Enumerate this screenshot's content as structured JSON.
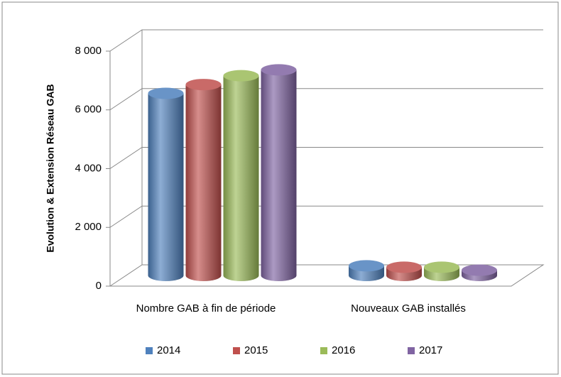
{
  "chart_data": {
    "type": "bar3d",
    "y_axis_label": "Evolution & Extension Réseau GAB",
    "categories": [
      "Nombre GAB à fin de période",
      "Nouveaux GAB installés"
    ],
    "series": [
      {
        "name": "2014",
        "color": "#4f81bd",
        "values": [
          6200,
          330
        ]
      },
      {
        "name": "2015",
        "color": "#c0504d",
        "values": [
          6500,
          280
        ]
      },
      {
        "name": "2016",
        "color": "#9bbb59",
        "values": [
          6800,
          280
        ]
      },
      {
        "name": "2017",
        "color": "#8064a2",
        "values": [
          7000,
          180
        ]
      }
    ],
    "ylim": [
      0,
      8000
    ],
    "yticks": [
      0,
      {
        "value": 2000,
        "label": "2 000"
      },
      {
        "value": 4000,
        "label": "4 000"
      },
      {
        "value": 6000,
        "label": "6 000"
      },
      {
        "value": 8000,
        "label": "8 000"
      }
    ],
    "grid": true,
    "legend": "bottom"
  }
}
